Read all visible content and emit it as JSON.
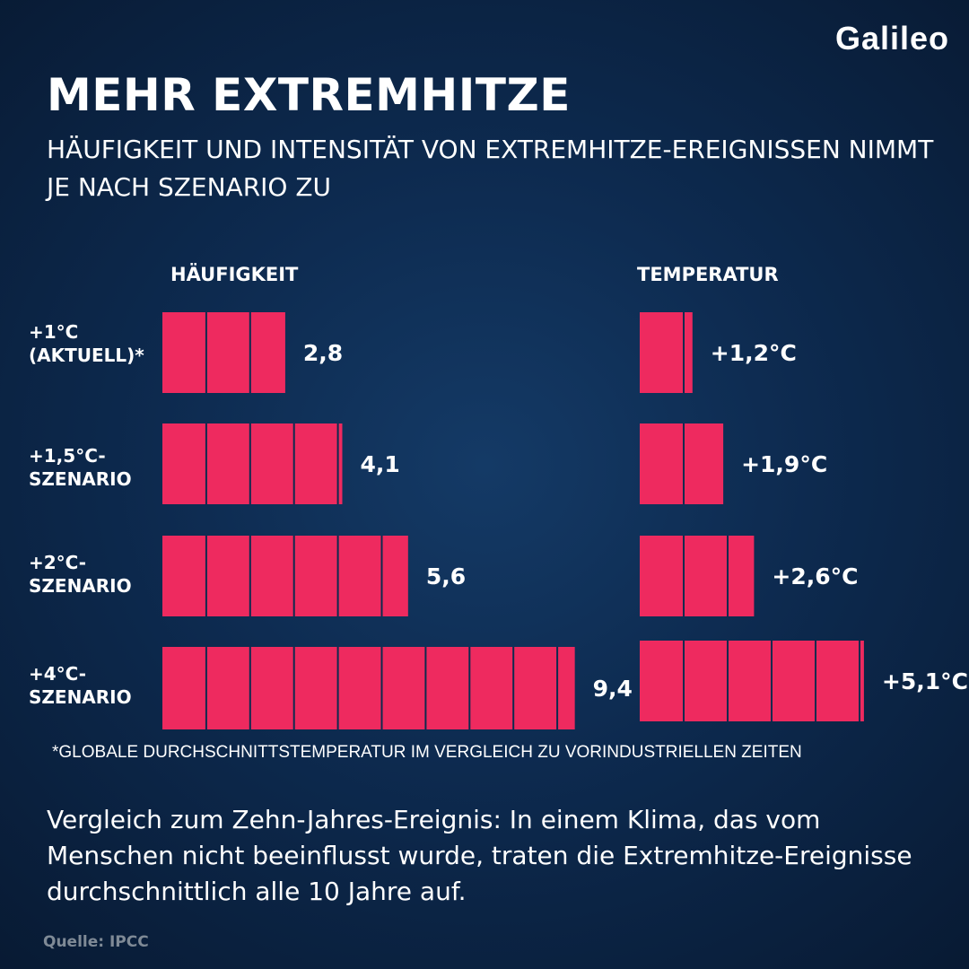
{
  "brand": "Galileo",
  "title": "MEHR EXTREMHITZE",
  "subtitle": "HÄUFIGKEIT UND INTENSITÄT VON EXTREMHITZE-EREIGNISSEN NIMMT JE NACH SZENARIO ZU",
  "footnote": "*GLOBALE DURCHSCHNITTSTEMPERATUR IM VERGLEICH ZU VORINDUSTRIELLEN ZEITEN",
  "body_text": "Vergleich zum Zehn-Jahres-Ereignis: In einem Klima, das vom Menschen nicht beeinflusst wurde, traten die Extremhitze-Ereignisse durchschnittlich alle 10 Jahre auf.",
  "source": "Quelle: IPCC",
  "colors": {
    "bar": "#ee2a5f",
    "text": "#ffffff",
    "background": "#0d2a4f"
  },
  "chart_data": [
    {
      "type": "bar",
      "title": "HÄUFIGKEIT",
      "categories": [
        "+1°C (AKTUELL)*",
        "+1,5°C-SZENARIO",
        "+2°C-SZENARIO",
        "+4°C-SZENARIO"
      ],
      "values": [
        2.8,
        4.1,
        5.6,
        9.4
      ],
      "data_labels": [
        "2,8",
        "4,1",
        "5,6",
        "9,4"
      ],
      "orientation": "horizontal"
    },
    {
      "type": "bar",
      "title": "TEMPERATUR",
      "categories": [
        "+1°C (AKTUELL)*",
        "+1,5°C-SZENARIO",
        "+2°C-SZENARIO",
        "+4°C-SZENARIO"
      ],
      "values": [
        1.2,
        1.9,
        2.6,
        5.1
      ],
      "data_labels": [
        "+1,2°C",
        "+1,9°C",
        "+2,6°C",
        "+5,1°C"
      ],
      "orientation": "horizontal"
    }
  ],
  "row_labels": [
    [
      "+1°C",
      "(AKTUELL)*"
    ],
    [
      "+1,5°C-",
      "SZENARIO"
    ],
    [
      "+2°C-",
      "SZENARIO"
    ],
    [
      "+4°C-",
      "SZENARIO"
    ]
  ]
}
